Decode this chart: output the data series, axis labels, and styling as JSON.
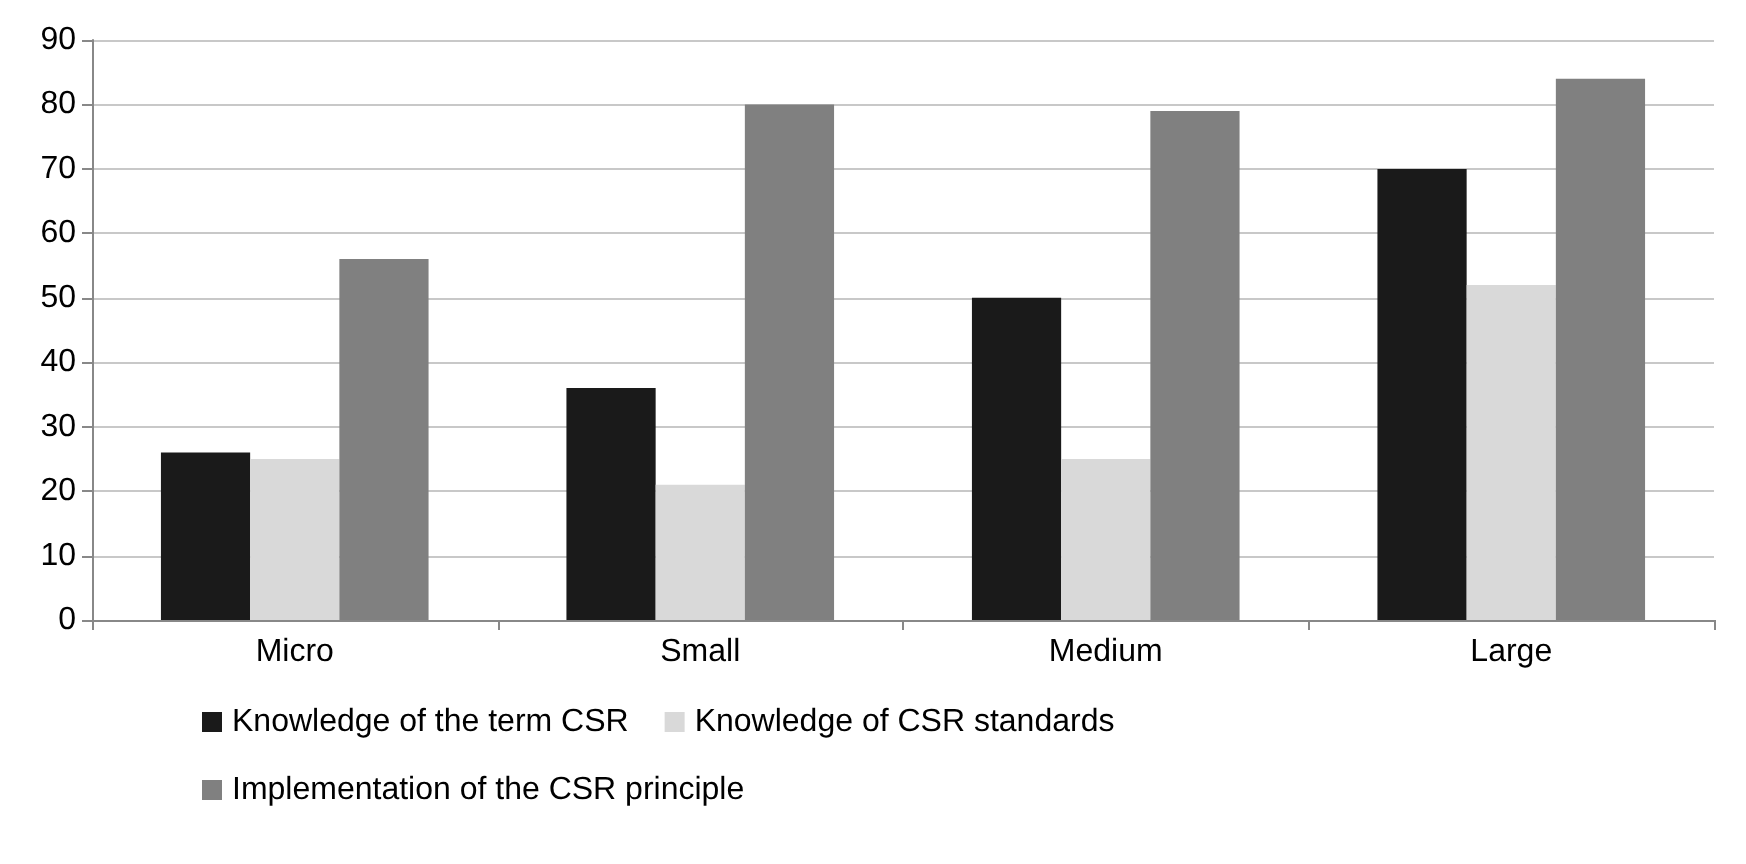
{
  "chart_data": {
    "type": "bar",
    "categories": [
      "Micro",
      "Small",
      "Medium",
      "Large"
    ],
    "series": [
      {
        "name": "Knowledge of the term CSR",
        "color": "#1a1a1a",
        "values": [
          26,
          36,
          50,
          70
        ]
      },
      {
        "name": "Knowledge of CSR standards",
        "color": "#d9d9d9",
        "values": [
          25,
          21,
          25,
          52
        ]
      },
      {
        "name": "Implementation of the CSR principle",
        "color": "#808080",
        "values": [
          56,
          80,
          79,
          84
        ]
      }
    ],
    "ylim": [
      0,
      90
    ],
    "yticks": [
      0,
      10,
      20,
      30,
      40,
      50,
      60,
      70,
      80,
      90
    ],
    "grid": "y",
    "legend": "bottom"
  }
}
